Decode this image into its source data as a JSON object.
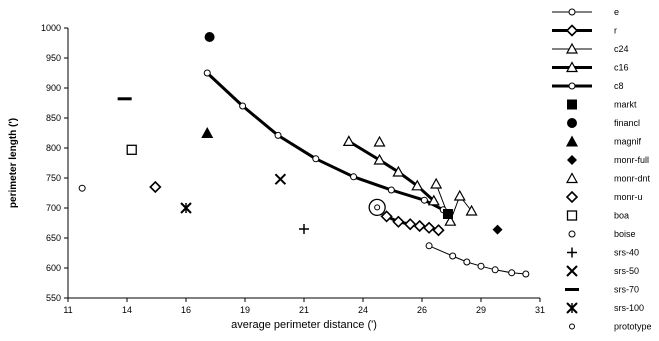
{
  "chart_data": {
    "type": "scatter",
    "xlabel": "average perimeter distance (')",
    "ylabel": "perimeter length (')",
    "xlim": [
      11,
      31
    ],
    "ylim": [
      550,
      1000
    ],
    "xticks": [
      "11",
      "14",
      "16",
      "19",
      "21",
      "24",
      "26",
      "29",
      "31"
    ],
    "yticks": [
      "550",
      "600",
      "650",
      "700",
      "750",
      "800",
      "850",
      "900",
      "950",
      "1000"
    ],
    "grid": false,
    "legend_position": "right",
    "series": [
      {
        "name": "e",
        "marker": "circle-open",
        "line": "thin",
        "points": [
          [
            26.3,
            637
          ],
          [
            27.3,
            620
          ],
          [
            27.9,
            610
          ],
          [
            28.5,
            603
          ],
          [
            29.1,
            597
          ],
          [
            29.8,
            592
          ],
          [
            30.4,
            590
          ]
        ]
      },
      {
        "name": "r",
        "marker": "diamond-open",
        "line": "thick",
        "points": [
          [
            24.5,
            686
          ],
          [
            25.0,
            677
          ],
          [
            25.5,
            673
          ],
          [
            25.9,
            670
          ],
          [
            26.3,
            667
          ],
          [
            26.7,
            663
          ]
        ]
      },
      {
        "name": "c24",
        "marker": "triangle-open",
        "line": "thin",
        "points": [
          [
            26.6,
            740
          ],
          [
            27.2,
            678
          ],
          [
            27.6,
            720
          ],
          [
            28.1,
            695
          ]
        ]
      },
      {
        "name": "c16",
        "marker": "triangle-open",
        "line": "thick",
        "points": [
          [
            22.9,
            811
          ],
          [
            24.2,
            780
          ],
          [
            25.0,
            760
          ],
          [
            25.8,
            737
          ],
          [
            26.5,
            712
          ]
        ]
      },
      {
        "name": "c8",
        "marker": "circle-open",
        "line": "thick",
        "points": [
          [
            16.9,
            925
          ],
          [
            18.4,
            870
          ],
          [
            19.9,
            821
          ],
          [
            21.5,
            782
          ],
          [
            23.1,
            752
          ],
          [
            24.7,
            730
          ],
          [
            26.1,
            713
          ],
          [
            26.9,
            697
          ]
        ]
      },
      {
        "name": "markt",
        "marker": "square-filled",
        "points": [
          [
            27.1,
            690
          ]
        ]
      },
      {
        "name": "financl",
        "marker": "circle-filled",
        "points": [
          [
            17.0,
            985
          ]
        ]
      },
      {
        "name": "magnif",
        "marker": "triangle-filled",
        "points": [
          [
            16.9,
            825
          ]
        ]
      },
      {
        "name": "monr-full",
        "marker": "diamond-filled",
        "points": [
          [
            29.2,
            664
          ]
        ]
      },
      {
        "name": "monr-dnt",
        "marker": "triangle-open",
        "points": [
          [
            24.2,
            810
          ]
        ]
      },
      {
        "name": "monr-u",
        "marker": "diamond-open",
        "points": [
          [
            14.7,
            735
          ]
        ]
      },
      {
        "name": "boa",
        "marker": "square-open",
        "points": [
          [
            13.7,
            797
          ]
        ]
      },
      {
        "name": "boise",
        "marker": "circle-open",
        "points": [
          [
            11.6,
            733
          ]
        ]
      },
      {
        "name": "srs-40",
        "marker": "plus",
        "points": [
          [
            21.0,
            665
          ]
        ]
      },
      {
        "name": "srs-50",
        "marker": "x",
        "points": [
          [
            20.0,
            748
          ]
        ]
      },
      {
        "name": "srs-70",
        "marker": "dash",
        "points": [
          [
            13.4,
            882
          ]
        ]
      },
      {
        "name": "srs-100",
        "marker": "asterisk",
        "points": [
          [
            16.0,
            700
          ]
        ]
      },
      {
        "name": "prototype",
        "marker": "circle-small",
        "points": [
          [
            24.1,
            701
          ]
        ]
      }
    ],
    "highlight": {
      "series": "prototype",
      "marker": "circle-open-large",
      "point": [
        24.1,
        701
      ]
    }
  },
  "colors": {
    "ink": "#000000",
    "background": "#ffffff"
  }
}
